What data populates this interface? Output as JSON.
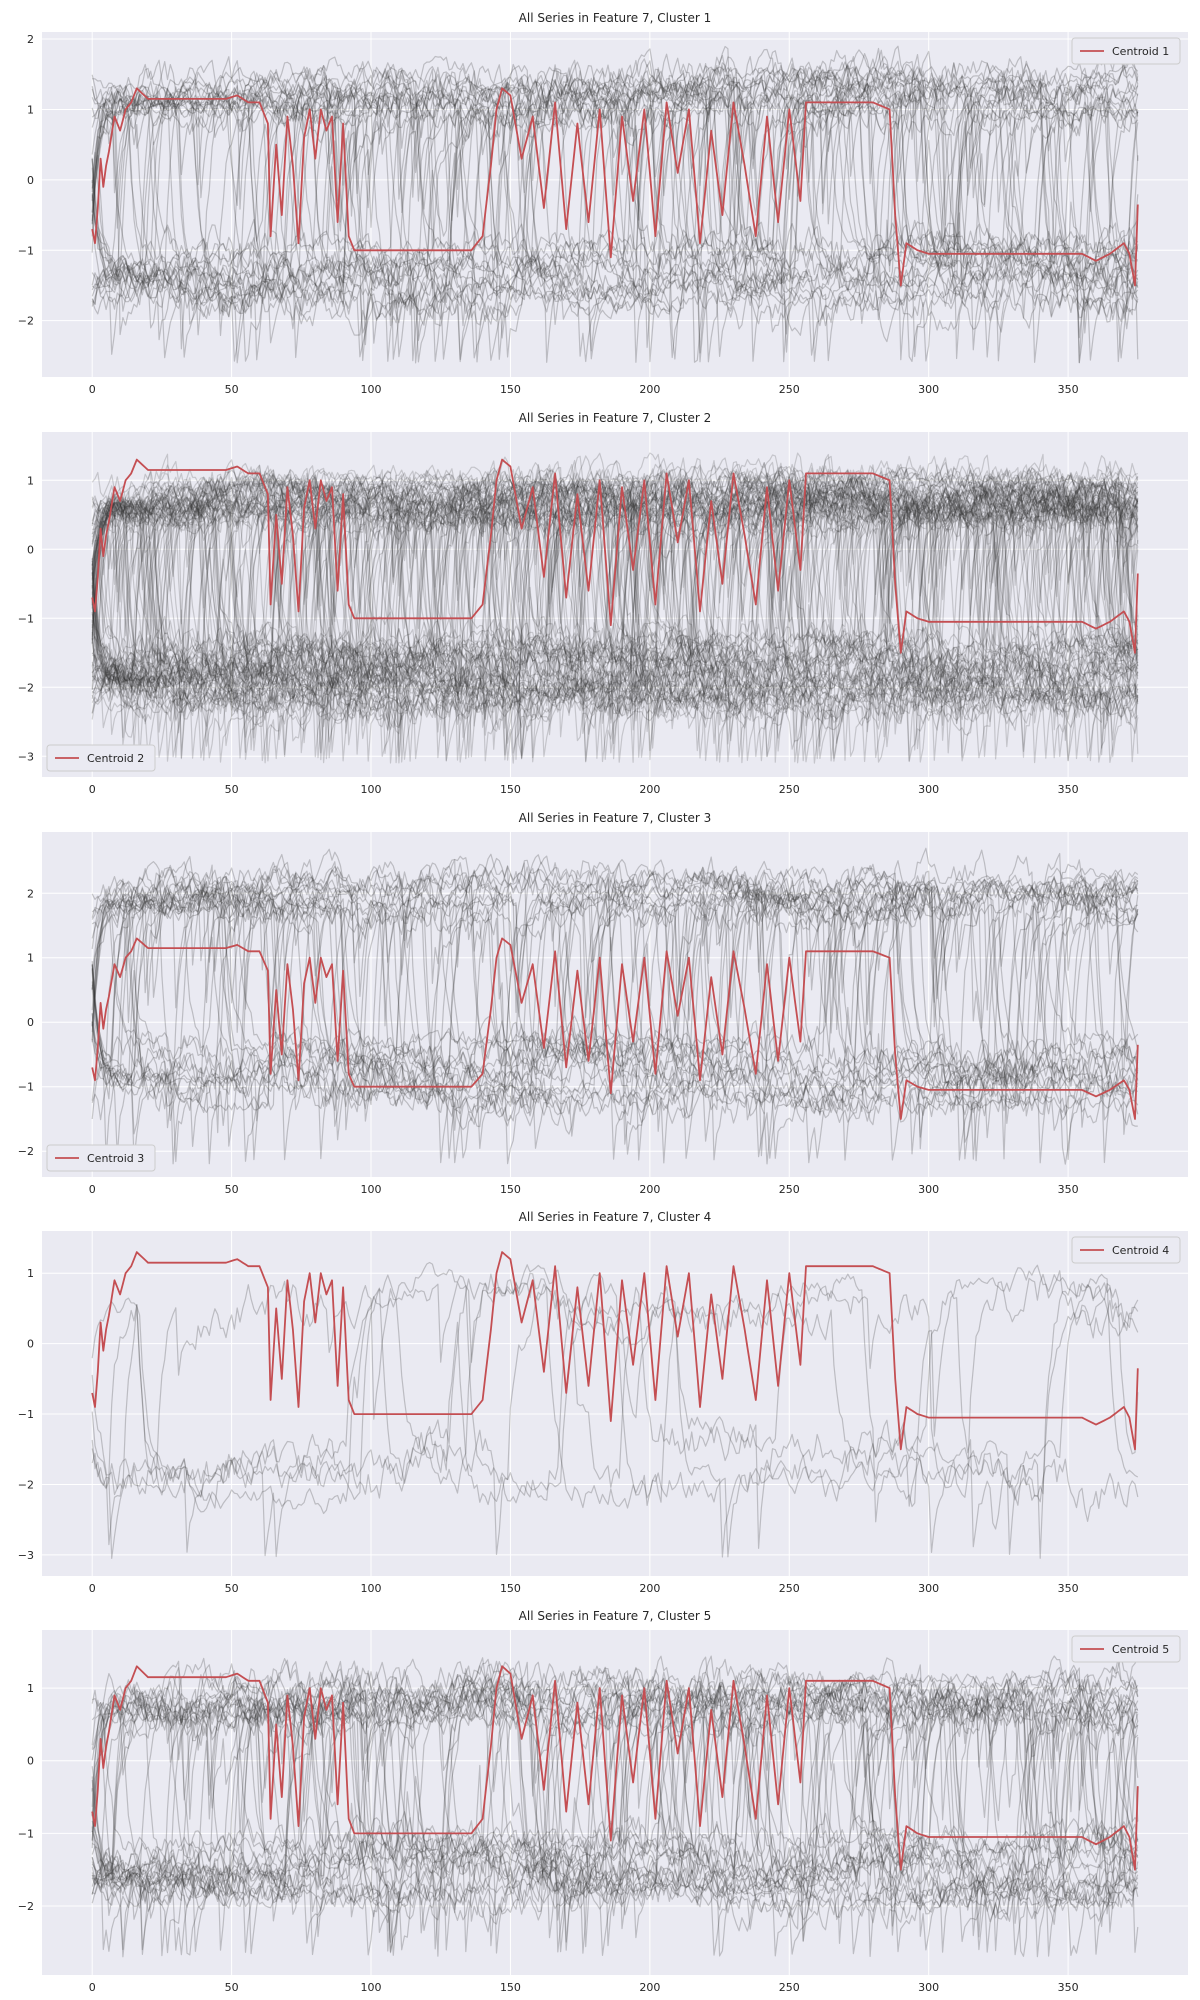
{
  "figure": {
    "background": "#ffffff",
    "panel_background": "#eaeaf2",
    "grid_color": "#ffffff",
    "member_series_color": "#333333",
    "centroid_color": "#c44e52"
  },
  "chart_data": [
    {
      "type": "line",
      "title": "All Series in Feature 7, Cluster 1",
      "xlabel": "",
      "ylabel": "",
      "xlim": [
        -18,
        393
      ],
      "ylim": [
        -2.8,
        2.1
      ],
      "xticks": [
        0,
        50,
        100,
        150,
        200,
        250,
        300,
        350
      ],
      "yticks": [
        -2,
        -1,
        0,
        1,
        2
      ],
      "grid": true,
      "legend_position": "upper right",
      "series_length": 376,
      "member_series_count": 40,
      "member_series_value_range": [
        -2.6,
        1.9
      ],
      "series": [
        {
          "name": "Centroid 1",
          "color": "#c44e52",
          "x": [
            0,
            1,
            2,
            3,
            4,
            5,
            6,
            8,
            10,
            12,
            14,
            16,
            20,
            30,
            40,
            48,
            52,
            56,
            60,
            63,
            64,
            66,
            68,
            70,
            72,
            74,
            76,
            78,
            80,
            82,
            84,
            86,
            88,
            90,
            92,
            94,
            100,
            110,
            120,
            130,
            136,
            140,
            143,
            145,
            147,
            150,
            154,
            158,
            162,
            166,
            170,
            174,
            178,
            182,
            186,
            190,
            194,
            198,
            202,
            206,
            210,
            214,
            218,
            222,
            226,
            230,
            234,
            238,
            242,
            246,
            250,
            254,
            256,
            260,
            270,
            280,
            286,
            288,
            290,
            292,
            296,
            300,
            320,
            340,
            350,
            355,
            360,
            365,
            370,
            372,
            374,
            375
          ],
          "values": [
            -0.7,
            -0.9,
            -0.4,
            0.3,
            -0.1,
            0.2,
            0.4,
            0.9,
            0.7,
            1.0,
            1.1,
            1.3,
            1.15,
            1.15,
            1.15,
            1.15,
            1.2,
            1.1,
            1.1,
            0.8,
            -0.8,
            0.5,
            -0.5,
            0.9,
            0.2,
            -0.9,
            0.6,
            1.0,
            0.3,
            1.0,
            0.7,
            0.9,
            -0.6,
            0.8,
            -0.8,
            -1.0,
            -1.0,
            -1.0,
            -1.0,
            -1.0,
            -1.0,
            -0.8,
            0.2,
            1.0,
            1.3,
            1.2,
            0.3,
            0.9,
            -0.4,
            1.1,
            -0.7,
            0.8,
            -0.6,
            1.0,
            -1.1,
            0.9,
            -0.3,
            1.0,
            -0.8,
            1.1,
            0.1,
            1.0,
            -0.9,
            0.7,
            -0.5,
            1.1,
            0.2,
            -0.8,
            0.9,
            -0.6,
            1.0,
            -0.3,
            1.1,
            1.1,
            1.1,
            1.1,
            1.0,
            -0.5,
            -1.5,
            -0.9,
            -1.0,
            -1.05,
            -1.05,
            -1.05,
            -1.05,
            -1.05,
            -1.15,
            -1.05,
            -0.9,
            -1.05,
            -1.5,
            -0.35
          ]
        }
      ]
    },
    {
      "type": "line",
      "title": "All Series in Feature 7, Cluster 2",
      "xlabel": "",
      "ylabel": "",
      "xlim": [
        -18,
        393
      ],
      "ylim": [
        -3.3,
        1.7
      ],
      "xticks": [
        0,
        50,
        100,
        150,
        200,
        250,
        300,
        350
      ],
      "yticks": [
        -3,
        -2,
        -1,
        0,
        1
      ],
      "grid": true,
      "legend_position": "lower left",
      "series_length": 376,
      "member_series_count": 100,
      "member_series_value_range": [
        -3.1,
        1.4
      ],
      "series": [
        {
          "name": "Centroid 2",
          "color": "#c44e52",
          "x": [
            0,
            1,
            2,
            3,
            4,
            5,
            6,
            8,
            10,
            12,
            14,
            16,
            20,
            30,
            40,
            48,
            52,
            56,
            60,
            63,
            64,
            66,
            68,
            70,
            72,
            74,
            76,
            78,
            80,
            82,
            84,
            86,
            88,
            90,
            92,
            94,
            100,
            110,
            120,
            130,
            136,
            140,
            143,
            145,
            147,
            150,
            154,
            158,
            162,
            166,
            170,
            174,
            178,
            182,
            186,
            190,
            194,
            198,
            202,
            206,
            210,
            214,
            218,
            222,
            226,
            230,
            234,
            238,
            242,
            246,
            250,
            254,
            256,
            260,
            270,
            280,
            286,
            288,
            290,
            292,
            296,
            300,
            320,
            340,
            350,
            355,
            360,
            365,
            370,
            372,
            374,
            375
          ],
          "values": [
            -0.7,
            -0.9,
            -0.4,
            0.3,
            -0.1,
            0.2,
            0.4,
            0.9,
            0.7,
            1.0,
            1.1,
            1.3,
            1.15,
            1.15,
            1.15,
            1.15,
            1.2,
            1.1,
            1.1,
            0.8,
            -0.8,
            0.5,
            -0.5,
            0.9,
            0.2,
            -0.9,
            0.6,
            1.0,
            0.3,
            1.0,
            0.7,
            0.9,
            -0.6,
            0.8,
            -0.8,
            -1.0,
            -1.0,
            -1.0,
            -1.0,
            -1.0,
            -1.0,
            -0.8,
            0.2,
            1.0,
            1.3,
            1.2,
            0.3,
            0.9,
            -0.4,
            1.1,
            -0.7,
            0.8,
            -0.6,
            1.0,
            -1.1,
            0.9,
            -0.3,
            1.0,
            -0.8,
            1.1,
            0.1,
            1.0,
            -0.9,
            0.7,
            -0.5,
            1.1,
            0.2,
            -0.8,
            0.9,
            -0.6,
            1.0,
            -0.3,
            1.1,
            1.1,
            1.1,
            1.1,
            1.0,
            -0.5,
            -1.5,
            -0.9,
            -1.0,
            -1.05,
            -1.05,
            -1.05,
            -1.05,
            -1.05,
            -1.15,
            -1.05,
            -0.9,
            -1.05,
            -1.5,
            -0.35
          ]
        }
      ]
    },
    {
      "type": "line",
      "title": "All Series in Feature 7, Cluster 3",
      "xlabel": "",
      "ylabel": "",
      "xlim": [
        -18,
        393
      ],
      "ylim": [
        -2.4,
        2.95
      ],
      "xticks": [
        0,
        50,
        100,
        150,
        200,
        250,
        300,
        350
      ],
      "yticks": [
        -2,
        -1,
        0,
        1,
        2
      ],
      "grid": true,
      "legend_position": "lower left",
      "series_length": 376,
      "member_series_count": 35,
      "member_series_value_range": [
        -2.2,
        2.7
      ],
      "series": [
        {
          "name": "Centroid 3",
          "color": "#c44e52",
          "x": [
            0,
            1,
            2,
            3,
            4,
            5,
            6,
            8,
            10,
            12,
            14,
            16,
            20,
            30,
            40,
            48,
            52,
            56,
            60,
            63,
            64,
            66,
            68,
            70,
            72,
            74,
            76,
            78,
            80,
            82,
            84,
            86,
            88,
            90,
            92,
            94,
            100,
            110,
            120,
            130,
            136,
            140,
            143,
            145,
            147,
            150,
            154,
            158,
            162,
            166,
            170,
            174,
            178,
            182,
            186,
            190,
            194,
            198,
            202,
            206,
            210,
            214,
            218,
            222,
            226,
            230,
            234,
            238,
            242,
            246,
            250,
            254,
            256,
            260,
            270,
            280,
            286,
            288,
            290,
            292,
            296,
            300,
            320,
            340,
            350,
            355,
            360,
            365,
            370,
            372,
            374,
            375
          ],
          "values": [
            -0.7,
            -0.9,
            -0.4,
            0.3,
            -0.1,
            0.2,
            0.4,
            0.9,
            0.7,
            1.0,
            1.1,
            1.3,
            1.15,
            1.15,
            1.15,
            1.15,
            1.2,
            1.1,
            1.1,
            0.8,
            -0.8,
            0.5,
            -0.5,
            0.9,
            0.2,
            -0.9,
            0.6,
            1.0,
            0.3,
            1.0,
            0.7,
            0.9,
            -0.6,
            0.8,
            -0.8,
            -1.0,
            -1.0,
            -1.0,
            -1.0,
            -1.0,
            -1.0,
            -0.8,
            0.2,
            1.0,
            1.3,
            1.2,
            0.3,
            0.9,
            -0.4,
            1.1,
            -0.7,
            0.8,
            -0.6,
            1.0,
            -1.1,
            0.9,
            -0.3,
            1.0,
            -0.8,
            1.1,
            0.1,
            1.0,
            -0.9,
            0.7,
            -0.5,
            1.1,
            0.2,
            -0.8,
            0.9,
            -0.6,
            1.0,
            -0.3,
            1.1,
            1.1,
            1.1,
            1.1,
            1.0,
            -0.5,
            -1.5,
            -0.9,
            -1.0,
            -1.05,
            -1.05,
            -1.05,
            -1.05,
            -1.05,
            -1.15,
            -1.05,
            -0.9,
            -1.05,
            -1.5,
            -0.35
          ]
        }
      ]
    },
    {
      "type": "line",
      "title": "All Series in Feature 7, Cluster 4",
      "xlabel": "",
      "ylabel": "",
      "xlim": [
        -18,
        393
      ],
      "ylim": [
        -3.3,
        1.6
      ],
      "xticks": [
        0,
        50,
        100,
        150,
        200,
        250,
        300,
        350
      ],
      "yticks": [
        -3,
        -2,
        -1,
        0,
        1
      ],
      "grid": true,
      "legend_position": "upper right",
      "series_length": 376,
      "member_series_count": 6,
      "member_series_value_range": [
        -3.05,
        1.3
      ],
      "series": [
        {
          "name": "Centroid 4",
          "color": "#c44e52",
          "x": [
            0,
            1,
            2,
            3,
            4,
            5,
            6,
            8,
            10,
            12,
            14,
            16,
            20,
            30,
            40,
            48,
            52,
            56,
            60,
            63,
            64,
            66,
            68,
            70,
            72,
            74,
            76,
            78,
            80,
            82,
            84,
            86,
            88,
            90,
            92,
            94,
            100,
            110,
            120,
            130,
            136,
            140,
            143,
            145,
            147,
            150,
            154,
            158,
            162,
            166,
            170,
            174,
            178,
            182,
            186,
            190,
            194,
            198,
            202,
            206,
            210,
            214,
            218,
            222,
            226,
            230,
            234,
            238,
            242,
            246,
            250,
            254,
            256,
            260,
            270,
            280,
            286,
            288,
            290,
            292,
            296,
            300,
            320,
            340,
            350,
            355,
            360,
            365,
            370,
            372,
            374,
            375
          ],
          "values": [
            -0.7,
            -0.9,
            -0.4,
            0.3,
            -0.1,
            0.2,
            0.4,
            0.9,
            0.7,
            1.0,
            1.1,
            1.3,
            1.15,
            1.15,
            1.15,
            1.15,
            1.2,
            1.1,
            1.1,
            0.8,
            -0.8,
            0.5,
            -0.5,
            0.9,
            0.2,
            -0.9,
            0.6,
            1.0,
            0.3,
            1.0,
            0.7,
            0.9,
            -0.6,
            0.8,
            -0.8,
            -1.0,
            -1.0,
            -1.0,
            -1.0,
            -1.0,
            -1.0,
            -0.8,
            0.2,
            1.0,
            1.3,
            1.2,
            0.3,
            0.9,
            -0.4,
            1.1,
            -0.7,
            0.8,
            -0.6,
            1.0,
            -1.1,
            0.9,
            -0.3,
            1.0,
            -0.8,
            1.1,
            0.1,
            1.0,
            -0.9,
            0.7,
            -0.5,
            1.1,
            0.2,
            -0.8,
            0.9,
            -0.6,
            1.0,
            -0.3,
            1.1,
            1.1,
            1.1,
            1.1,
            1.0,
            -0.5,
            -1.5,
            -0.9,
            -1.0,
            -1.05,
            -1.05,
            -1.05,
            -1.05,
            -1.05,
            -1.15,
            -1.05,
            -0.9,
            -1.05,
            -1.5,
            -0.35
          ]
        }
      ]
    },
    {
      "type": "line",
      "title": "All Series in Feature 7, Cluster 5",
      "xlabel": "",
      "ylabel": "",
      "xlim": [
        -18,
        393
      ],
      "ylim": [
        -2.95,
        1.8
      ],
      "xticks": [
        0,
        50,
        100,
        150,
        200,
        250,
        300,
        350
      ],
      "yticks": [
        -2,
        -1,
        0,
        1
      ],
      "grid": true,
      "legend_position": "upper right",
      "series_length": 376,
      "member_series_count": 40,
      "member_series_value_range": [
        -2.7,
        1.45
      ],
      "series": [
        {
          "name": "Centroid 5",
          "color": "#c44e52",
          "x": [
            0,
            1,
            2,
            3,
            4,
            5,
            6,
            8,
            10,
            12,
            14,
            16,
            20,
            30,
            40,
            48,
            52,
            56,
            60,
            63,
            64,
            66,
            68,
            70,
            72,
            74,
            76,
            78,
            80,
            82,
            84,
            86,
            88,
            90,
            92,
            94,
            100,
            110,
            120,
            130,
            136,
            140,
            143,
            145,
            147,
            150,
            154,
            158,
            162,
            166,
            170,
            174,
            178,
            182,
            186,
            190,
            194,
            198,
            202,
            206,
            210,
            214,
            218,
            222,
            226,
            230,
            234,
            238,
            242,
            246,
            250,
            254,
            256,
            260,
            270,
            280,
            286,
            288,
            290,
            292,
            296,
            300,
            320,
            340,
            350,
            355,
            360,
            365,
            370,
            372,
            374,
            375
          ],
          "values": [
            -0.7,
            -0.9,
            -0.4,
            0.3,
            -0.1,
            0.2,
            0.4,
            0.9,
            0.7,
            1.0,
            1.1,
            1.3,
            1.15,
            1.15,
            1.15,
            1.15,
            1.2,
            1.1,
            1.1,
            0.8,
            -0.8,
            0.5,
            -0.5,
            0.9,
            0.2,
            -0.9,
            0.6,
            1.0,
            0.3,
            1.0,
            0.7,
            0.9,
            -0.6,
            0.8,
            -0.8,
            -1.0,
            -1.0,
            -1.0,
            -1.0,
            -1.0,
            -1.0,
            -0.8,
            0.2,
            1.0,
            1.3,
            1.2,
            0.3,
            0.9,
            -0.4,
            1.1,
            -0.7,
            0.8,
            -0.6,
            1.0,
            -1.1,
            0.9,
            -0.3,
            1.0,
            -0.8,
            1.1,
            0.1,
            1.0,
            -0.9,
            0.7,
            -0.5,
            1.1,
            0.2,
            -0.8,
            0.9,
            -0.6,
            1.0,
            -0.3,
            1.1,
            1.1,
            1.1,
            1.1,
            1.0,
            -0.5,
            -1.5,
            -0.9,
            -1.0,
            -1.05,
            -1.05,
            -1.05,
            -1.05,
            -1.05,
            -1.15,
            -1.05,
            -0.9,
            -1.05,
            -1.5,
            -0.35
          ]
        }
      ]
    }
  ]
}
